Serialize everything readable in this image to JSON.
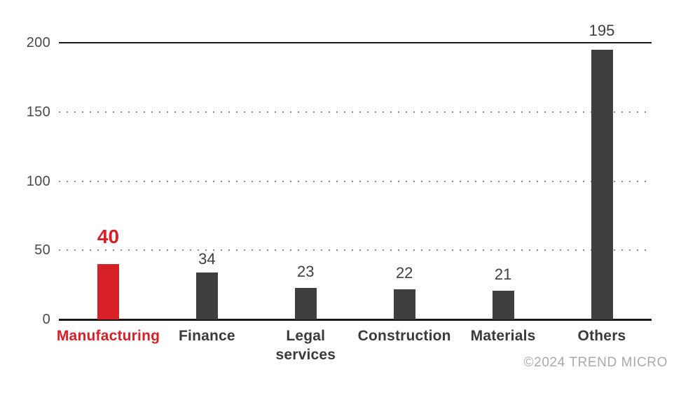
{
  "chart_data": {
    "type": "bar",
    "categories": [
      "Manufacturing",
      "Finance",
      "Legal\nservices",
      "Construction",
      "Materials",
      "Others"
    ],
    "values": [
      40,
      34,
      23,
      22,
      21,
      195
    ],
    "highlight_index": 0,
    "title": "",
    "xlabel": "",
    "ylabel": "",
    "ylim": [
      0,
      200
    ],
    "yticks": [
      0,
      50,
      100,
      150,
      200
    ],
    "grid": "horizontal dotted at 50/100/150, solid line at 200 and baseline at 0",
    "legend": "none",
    "colors": {
      "highlight_bar": "#d71f27",
      "bar": "#3f3f42",
      "axis_line": "#1a1a1a",
      "grid_dot": "#8c8c8c",
      "tick_label": "#4a4a4c",
      "value_label": "#3f3f42",
      "category_label": "#3a3a3c",
      "highlight_label": "#d71f27",
      "copyright": "#a9a9a9"
    }
  },
  "footer": {
    "copyright": "©2024 TREND MICRO"
  }
}
